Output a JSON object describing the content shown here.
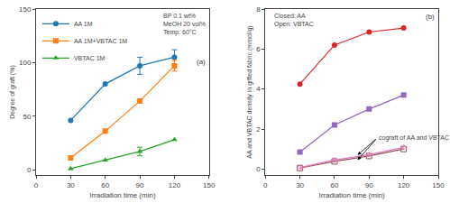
{
  "chart_data": [
    {
      "type": "line",
      "xlabel": "Irradiation time (min)",
      "ylabel": "Degree of graft (%)",
      "xlim": [
        0,
        150
      ],
      "ylim": [
        -5,
        150
      ],
      "xticks": [
        0,
        30,
        60,
        90,
        120,
        150
      ],
      "yticks": [
        0,
        50,
        100,
        150
      ],
      "grid": false,
      "legend": "upper left",
      "series": [
        {
          "name": "AA 1M",
          "x": [
            30,
            60,
            90,
            120
          ],
          "values": [
            46,
            80,
            97,
            105
          ],
          "yerr": [
            null,
            null,
            8,
            7
          ],
          "marker": "circle"
        },
        {
          "name": "AA 1M+VBTAC 1M",
          "x": [
            30,
            60,
            90,
            120
          ],
          "values": [
            11,
            36,
            64,
            97
          ],
          "yerr": [
            null,
            null,
            null,
            5
          ],
          "marker": "square"
        },
        {
          "name": "VBTAC 1M",
          "x": [
            30,
            60,
            90,
            120
          ],
          "values": [
            1,
            9,
            17,
            28
          ],
          "yerr": [
            null,
            null,
            4,
            null
          ],
          "marker": "triangle-up"
        }
      ],
      "annotation": "BP 0.1 wt%\nMeOH 20 vol%\nTemp. 60°C",
      "panel_label": "(a)"
    },
    {
      "type": "line",
      "xlabel": "Irradiation time (min)",
      "ylabel": "AA and VBTAC density in grfted fabric (mmol/g)",
      "xlim": [
        0,
        150
      ],
      "ylim": [
        -0.3,
        8
      ],
      "xticks": [
        0,
        30,
        60,
        90,
        120,
        150
      ],
      "yticks": [
        0,
        2,
        4,
        6,
        8
      ],
      "grid": false,
      "series": [
        {
          "x": [
            30,
            60,
            90,
            120
          ],
          "values": [
            4.25,
            6.2,
            6.85,
            7.05
          ],
          "marker": "circle"
        },
        {
          "x": [
            30,
            60,
            90,
            120
          ],
          "values": [
            0.85,
            2.2,
            3.0,
            3.7
          ],
          "marker": "square"
        },
        {
          "x": [
            30,
            60,
            90,
            120
          ],
          "values": [
            0.05,
            0.38,
            0.65,
            1.0
          ],
          "marker": "square-open"
        },
        {
          "x": [
            30,
            60,
            90,
            120
          ],
          "values": [
            0.08,
            0.45,
            0.72,
            1.08
          ],
          "marker": "triangle-up-open"
        }
      ],
      "legend_text": "Closed: AA\nOpen: VBTAC",
      "panel_label": "(b)",
      "annotations": [
        {
          "text": "cograft of AA and VBTAC",
          "x": 97,
          "y": 1.55,
          "arrows": [
            {
              "x": 80,
              "y": 0.7
            },
            {
              "x": 80,
              "y": 0.45
            }
          ]
        }
      ]
    }
  ]
}
